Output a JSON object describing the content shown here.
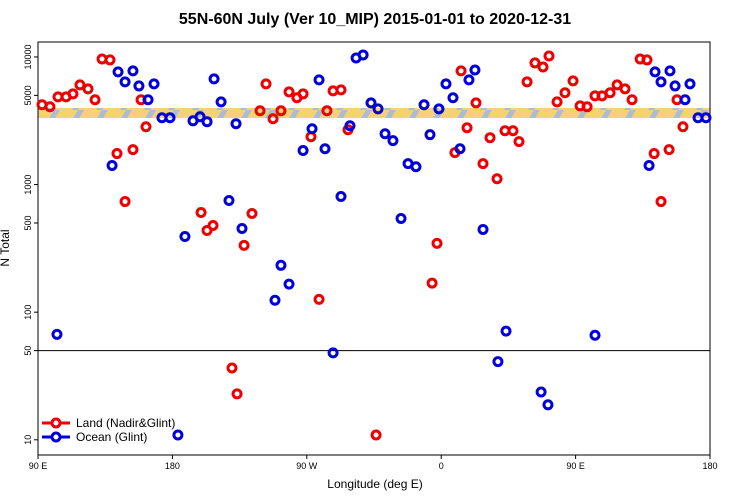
{
  "chart_data": {
    "type": "scatter",
    "title": "55N-60N July (Ver 10_MIP)   2015-01-01 to 2020-12-31",
    "xlabel": "Longitude (deg E)",
    "ylabel": "N Total",
    "xlim": [
      90,
      540
    ],
    "xticks": [
      {
        "value": 90,
        "label": "90 E"
      },
      180,
      {
        "value": 270,
        "label": "90 W"
      },
      {
        "value": 360,
        "label": "0"
      },
      {
        "value": 450,
        "label": "90 E"
      },
      {
        "value": 540,
        "label": "180"
      }
    ],
    "ylim": [
      7.6,
      13100
    ],
    "ylog": true,
    "yticks": [
      10,
      50,
      100,
      500,
      1000,
      5000,
      10000
    ],
    "hline": 50,
    "legend": "bottom-left",
    "series": [
      {
        "name": "Land (Nadir&Glint)",
        "color": "#ee0000",
        "x": [
          92.7,
          98,
          103.4,
          108.8,
          113.4,
          118.1,
          123.5,
          128.2,
          132.9,
          138.2,
          142.9,
          148.3,
          153.6,
          159,
          162.3,
          199.2,
          203.2,
          207.2,
          219.9,
          223.3,
          228,
          233.3,
          238.7,
          242.7,
          247.4,
          252.7,
          258.1,
          263.4,
          267.5,
          272.8,
          278.2,
          283.5,
          287.6,
          292.9,
          297.6,
          316.4,
          353.9,
          357.2,
          369.2,
          373.3,
          377.3,
          383.3,
          388,
          392.7,
          397.4,
          402.7,
          408.1,
          412.1,
          417.5,
          422.8,
          428.2,
          432.2,
          437.6,
          442.9,
          448.3,
          453,
          457.7,
          463,
          467.7,
          473.1,
          477.8,
          483.1,
          487.8,
          493.2,
          497.8,
          502.6,
          507.2,
          512.6,
          517.9,
          521.9
        ],
        "values": [
          4220,
          4070,
          4870,
          4870,
          5140,
          6040,
          5620,
          4620,
          9640,
          9480,
          1750,
          736,
          1880,
          4620,
          2840,
          604,
          437,
          478,
          36.5,
          22.9,
          334,
          593,
          3790,
          6150,
          3280,
          3790,
          5330,
          4790,
          5140,
          2370,
          126,
          3790,
          5420,
          5520,
          2690,
          10.9,
          169,
          346,
          1780,
          7780,
          2790,
          4370,
          1460,
          2330,
          1110,
          2640,
          2640,
          2170,
          6380,
          8980,
          8350,
          10180,
          4450,
          5240,
          6500,
          4140,
          4070,
          4960,
          4960,
          5240,
          6040,
          5620,
          4620,
          9640,
          9480,
          1750,
          736,
          1880,
          4620,
          2840
        ]
      },
      {
        "name": "Ocean (Glint)",
        "color": "#0000dd",
        "x": [
          102.7,
          139.6,
          143.6,
          148.3,
          153.6,
          157.6,
          163.7,
          167.7,
          173,
          178.4,
          183.7,
          188.4,
          193.8,
          198.5,
          203.2,
          207.9,
          212.6,
          217.9,
          222.6,
          226.6,
          248.7,
          252.7,
          258.1,
          267.5,
          273.5,
          278.2,
          282.2,
          287.6,
          292.9,
          298.9,
          303,
          307.7,
          313,
          317.7,
          322.4,
          327.7,
          333.1,
          337.8,
          343.1,
          348.5,
          352.5,
          358.5,
          363.2,
          367.9,
          372.6,
          378.6,
          382.6,
          388,
          398,
          403.4,
          426.9,
          431.5,
          463,
          499.2,
          503.2,
          507.2,
          513.2,
          516.6,
          523.3,
          526.6,
          532,
          537.3
        ],
        "values": [
          67,
          1410,
          7640,
          6380,
          7780,
          5930,
          4620,
          6150,
          3340,
          3340,
          10.9,
          392,
          3160,
          3400,
          3110,
          6730,
          4450,
          750,
          3000,
          453,
          124,
          233,
          166,
          1850,
          2740,
          6610,
          1910,
          48,
          806,
          2890,
          9820,
          10370,
          4370,
          3920,
          2500,
          2210,
          542,
          1460,
          1380,
          4220,
          2460,
          3920,
          6150,
          4790,
          1910,
          6610,
          7910,
          445,
          41,
          71,
          23.7,
          18.8,
          66,
          1410,
          7640,
          6380,
          7780,
          5930,
          4620,
          6150,
          3340,
          3340
        ]
      }
    ]
  }
}
